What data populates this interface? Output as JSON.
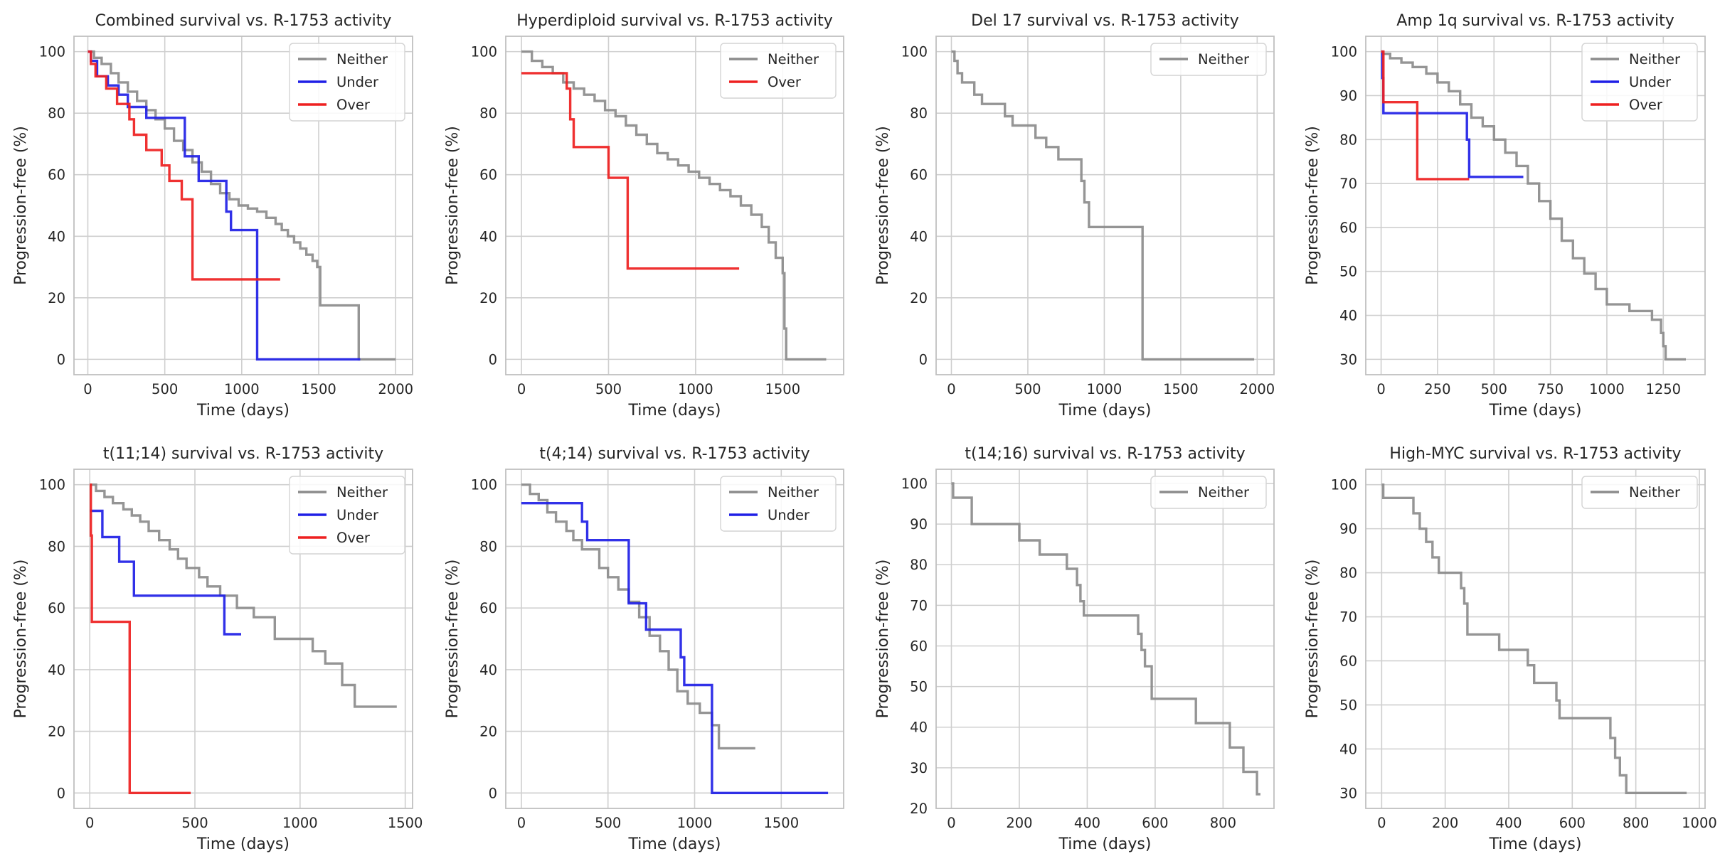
{
  "colors": {
    "Neither": "#8c8c8c",
    "Under": "#1f1fe6",
    "Over": "#ee2020",
    "grid": "#cfcfcf",
    "frame": "#c0c0c0"
  },
  "chart_data": [
    {
      "type": "line",
      "step": true,
      "title": "Combined survival vs. R-1753 activity",
      "xlabel": "Time (days)",
      "ylabel": "Progression-free (%)",
      "xlim": [
        -90,
        2110
      ],
      "ylim": [
        -5,
        105
      ],
      "xticks": [
        0,
        500,
        1000,
        1500,
        2000
      ],
      "xtick_labels": [
        "0",
        "500",
        "1000",
        "1500",
        "2000"
      ],
      "yticks": [
        0,
        20,
        40,
        60,
        80,
        100
      ],
      "ytick_labels": [
        "0",
        "20",
        "40",
        "60",
        "80",
        "100"
      ],
      "legend": [
        "Neither",
        "Under",
        "Over"
      ],
      "series": [
        {
          "name": "Neither",
          "x": [
            0,
            40,
            90,
            150,
            200,
            260,
            320,
            380,
            440,
            500,
            560,
            620,
            680,
            740,
            800,
            860,
            920,
            980,
            1040,
            1100,
            1160,
            1220,
            1260,
            1300,
            1340,
            1380,
            1420,
            1460,
            1490,
            1510,
            1760,
            1760,
            2000
          ],
          "y": [
            100,
            98,
            96,
            93,
            90,
            87,
            84,
            81,
            78,
            75,
            71,
            68,
            64,
            61,
            57,
            54,
            52,
            50,
            49,
            48,
            46,
            44,
            42,
            40,
            38,
            36,
            34,
            32,
            30,
            17.5,
            17.5,
            0,
            0
          ]
        },
        {
          "name": "Under",
          "x": [
            0,
            20,
            60,
            130,
            200,
            260,
            380,
            630,
            720,
            900,
            930,
            1100,
            1770
          ],
          "y": [
            100,
            97,
            92,
            89,
            86,
            82,
            78.5,
            66,
            58,
            48,
            42,
            0,
            0
          ]
        },
        {
          "name": "Over",
          "x": [
            0,
            20,
            50,
            120,
            190,
            270,
            300,
            380,
            480,
            530,
            610,
            680,
            1250
          ],
          "y": [
            100,
            96,
            92,
            88,
            83,
            78,
            73,
            68,
            63,
            58,
            52,
            26,
            26
          ]
        }
      ]
    },
    {
      "type": "line",
      "step": true,
      "title": "Hyperdiploid survival vs. R-1753 activity",
      "xlabel": "Time (days)",
      "ylabel": "Progression-free (%)",
      "xlim": [
        -90,
        1850
      ],
      "ylim": [
        -5,
        105
      ],
      "xticks": [
        0,
        500,
        1000,
        1500
      ],
      "xtick_labels": [
        "0",
        "500",
        "1000",
        "1500"
      ],
      "yticks": [
        0,
        20,
        40,
        60,
        80,
        100
      ],
      "ytick_labels": [
        "0",
        "20",
        "40",
        "60",
        "80",
        "100"
      ],
      "legend": [
        "Neither",
        "Over"
      ],
      "series": [
        {
          "name": "Neither",
          "x": [
            0,
            60,
            120,
            180,
            240,
            300,
            360,
            420,
            480,
            540,
            600,
            660,
            720,
            780,
            840,
            900,
            960,
            1020,
            1080,
            1140,
            1200,
            1260,
            1320,
            1380,
            1420,
            1460,
            1500,
            1510,
            1520,
            1750
          ],
          "y": [
            100,
            97,
            95,
            93,
            90,
            88,
            86,
            84,
            81,
            79,
            76,
            73,
            70,
            67,
            65,
            63,
            61,
            59,
            57,
            55,
            53,
            50,
            47,
            43,
            38,
            33,
            28,
            10,
            0,
            0
          ]
        },
        {
          "name": "Over",
          "x": [
            0,
            260,
            280,
            300,
            500,
            610,
            1250
          ],
          "y": [
            93,
            88,
            78,
            69,
            59,
            29.5,
            29.5
          ]
        }
      ]
    },
    {
      "type": "line",
      "step": true,
      "title": "Del 17 survival vs. R-1753 activity",
      "xlabel": "Time (days)",
      "ylabel": "Progression-free (%)",
      "xlim": [
        -100,
        2110
      ],
      "ylim": [
        -5,
        105
      ],
      "xticks": [
        0,
        500,
        1000,
        1500,
        2000
      ],
      "xtick_labels": [
        "0",
        "500",
        "1000",
        "1500",
        "2000"
      ],
      "yticks": [
        0,
        20,
        40,
        60,
        80,
        100
      ],
      "ytick_labels": [
        "0",
        "20",
        "40",
        "60",
        "80",
        "100"
      ],
      "legend": [
        "Neither"
      ],
      "series": [
        {
          "name": "Neither",
          "x": [
            0,
            20,
            40,
            70,
            150,
            200,
            350,
            400,
            550,
            620,
            700,
            850,
            870,
            900,
            1250,
            1250,
            1980
          ],
          "y": [
            100,
            97,
            93,
            90,
            86,
            83,
            79,
            76,
            72,
            69,
            65,
            58,
            51,
            43,
            28,
            0,
            0
          ]
        }
      ]
    },
    {
      "type": "line",
      "step": true,
      "title": "Amp 1q survival vs. R-1753 activity",
      "xlabel": "Time (days)",
      "ylabel": "Progression-free (%)",
      "xlim": [
        -68,
        1435
      ],
      "ylim": [
        26.5,
        103.5
      ],
      "xticks": [
        0,
        250,
        500,
        750,
        1000,
        1250
      ],
      "xtick_labels": [
        "0",
        "250",
        "500",
        "750",
        "1000",
        "1250"
      ],
      "yticks": [
        30,
        40,
        50,
        60,
        70,
        80,
        90,
        100
      ],
      "ytick_labels": [
        "30",
        "40",
        "50",
        "60",
        "70",
        "80",
        "90",
        "100"
      ],
      "legend": [
        "Neither",
        "Under",
        "Over"
      ],
      "series": [
        {
          "name": "Neither",
          "x": [
            0,
            40,
            90,
            140,
            200,
            250,
            300,
            350,
            400,
            450,
            500,
            550,
            600,
            650,
            700,
            750,
            800,
            850,
            900,
            950,
            1000,
            1100,
            1200,
            1240,
            1250,
            1260,
            1350
          ],
          "y": [
            99.5,
            98.5,
            97.5,
            96.5,
            95,
            93,
            91,
            88,
            85,
            83,
            80,
            77,
            74,
            70,
            66,
            62,
            57,
            53,
            49.5,
            46,
            42.5,
            41,
            39,
            36,
            33,
            30,
            30
          ]
        },
        {
          "name": "Under",
          "x": [
            0,
            5,
            10,
            370,
            380,
            390,
            630
          ],
          "y": [
            100,
            94,
            86,
            86,
            80,
            71.5,
            71.5
          ]
        },
        {
          "name": "Over",
          "x": [
            0,
            10,
            160,
            390
          ],
          "y": [
            100,
            88.5,
            71,
            71
          ]
        }
      ]
    },
    {
      "type": "line",
      "step": true,
      "title": "t(11;14) survival vs. R-1753 activity",
      "xlabel": "Time (days)",
      "ylabel": "Progression-free (%)",
      "xlim": [
        -75,
        1535
      ],
      "ylim": [
        -5,
        105
      ],
      "xticks": [
        0,
        500,
        1000,
        1500
      ],
      "xtick_labels": [
        "0",
        "500",
        "1000",
        "1500"
      ],
      "yticks": [
        0,
        20,
        40,
        60,
        80,
        100
      ],
      "ytick_labels": [
        "0",
        "20",
        "40",
        "60",
        "80",
        "100"
      ],
      "legend": [
        "Neither",
        "Under",
        "Over"
      ],
      "series": [
        {
          "name": "Neither",
          "x": [
            0,
            30,
            70,
            110,
            160,
            200,
            240,
            280,
            330,
            380,
            420,
            460,
            520,
            560,
            620,
            700,
            780,
            880,
            1060,
            1120,
            1200,
            1260,
            1460
          ],
          "y": [
            100,
            98,
            96,
            94,
            92,
            90,
            88,
            85,
            82,
            79,
            76,
            73,
            70,
            67,
            64,
            60,
            57,
            50,
            46,
            42,
            35,
            28,
            28
          ]
        },
        {
          "name": "Under",
          "x": [
            0,
            60,
            140,
            210,
            640,
            720
          ],
          "y": [
            91.5,
            83,
            75,
            64,
            51.5,
            51.5
          ]
        },
        {
          "name": "Over",
          "x": [
            0,
            5,
            10,
            190,
            480
          ],
          "y": [
            100,
            83.5,
            55.5,
            0,
            0
          ]
        }
      ]
    },
    {
      "type": "line",
      "step": true,
      "title": "t(4;14) survival vs. R-1753 activity",
      "xlabel": "Time (days)",
      "ylabel": "Progression-free (%)",
      "xlim": [
        -90,
        1860
      ],
      "ylim": [
        -5,
        105
      ],
      "xticks": [
        0,
        500,
        1000,
        1500
      ],
      "xtick_labels": [
        "0",
        "500",
        "1000",
        "1500"
      ],
      "yticks": [
        0,
        20,
        40,
        60,
        80,
        100
      ],
      "ytick_labels": [
        "0",
        "20",
        "40",
        "60",
        "80",
        "100"
      ],
      "legend": [
        "Neither",
        "Under"
      ],
      "series": [
        {
          "name": "Neither",
          "x": [
            0,
            50,
            100,
            150,
            200,
            260,
            300,
            350,
            450,
            500,
            560,
            620,
            680,
            740,
            800,
            850,
            900,
            960,
            1030,
            1100,
            1140,
            1350
          ],
          "y": [
            100,
            97,
            95,
            91,
            88,
            85,
            82,
            79,
            73,
            70,
            66,
            62,
            57,
            51,
            46,
            40,
            33,
            29,
            26,
            22,
            14.5,
            14.5
          ]
        },
        {
          "name": "Under",
          "x": [
            0,
            350,
            380,
            620,
            720,
            920,
            940,
            1100,
            1770
          ],
          "y": [
            94,
            88,
            82,
            61.5,
            53,
            44,
            35,
            0,
            0
          ]
        }
      ]
    },
    {
      "type": "line",
      "step": true,
      "title": "t(14;16) survival vs. R-1753 activity",
      "xlabel": "Time (days)",
      "ylabel": "Progression-free (%)",
      "xlim": [
        -45,
        950
      ],
      "ylim": [
        20,
        103.5
      ],
      "xticks": [
        0,
        200,
        400,
        600,
        800
      ],
      "xtick_labels": [
        "0",
        "200",
        "400",
        "600",
        "800"
      ],
      "yticks": [
        20,
        30,
        40,
        50,
        60,
        70,
        80,
        90,
        100
      ],
      "ytick_labels": [
        "20",
        "30",
        "40",
        "50",
        "60",
        "70",
        "80",
        "90",
        "100"
      ],
      "legend": [
        "Neither"
      ],
      "series": [
        {
          "name": "Neither",
          "x": [
            0,
            5,
            60,
            200,
            260,
            340,
            370,
            380,
            390,
            400,
            550,
            560,
            570,
            590,
            720,
            820,
            860,
            900,
            910
          ],
          "y": [
            100,
            96.5,
            90,
            86,
            82.5,
            79,
            75,
            71,
            67.5,
            67.5,
            63,
            59,
            55,
            47,
            41,
            35,
            29,
            23.5,
            23.5
          ]
        }
      ]
    },
    {
      "type": "line",
      "step": true,
      "title": "High-MYC survival vs. R-1753 activity",
      "xlabel": "Time (days)",
      "ylabel": "Progression-free (%)",
      "xlim": [
        -50,
        1018
      ],
      "ylim": [
        26.5,
        103.5
      ],
      "xticks": [
        0,
        200,
        400,
        600,
        800,
        1000
      ],
      "xtick_labels": [
        "0",
        "200",
        "400",
        "600",
        "800",
        "1000"
      ],
      "yticks": [
        30,
        40,
        50,
        60,
        70,
        80,
        90,
        100
      ],
      "ytick_labels": [
        "30",
        "40",
        "50",
        "60",
        "70",
        "80",
        "90",
        "100"
      ],
      "legend": [
        "Neither"
      ],
      "series": [
        {
          "name": "Neither",
          "x": [
            0,
            5,
            100,
            120,
            140,
            160,
            180,
            250,
            260,
            270,
            370,
            460,
            480,
            550,
            560,
            720,
            735,
            750,
            770,
            960
          ],
          "y": [
            100,
            97,
            93.5,
            90,
            87,
            83.5,
            80,
            76.5,
            73,
            66,
            62.5,
            59,
            55,
            51,
            47,
            42.5,
            38,
            34,
            30,
            30
          ]
        }
      ]
    }
  ]
}
